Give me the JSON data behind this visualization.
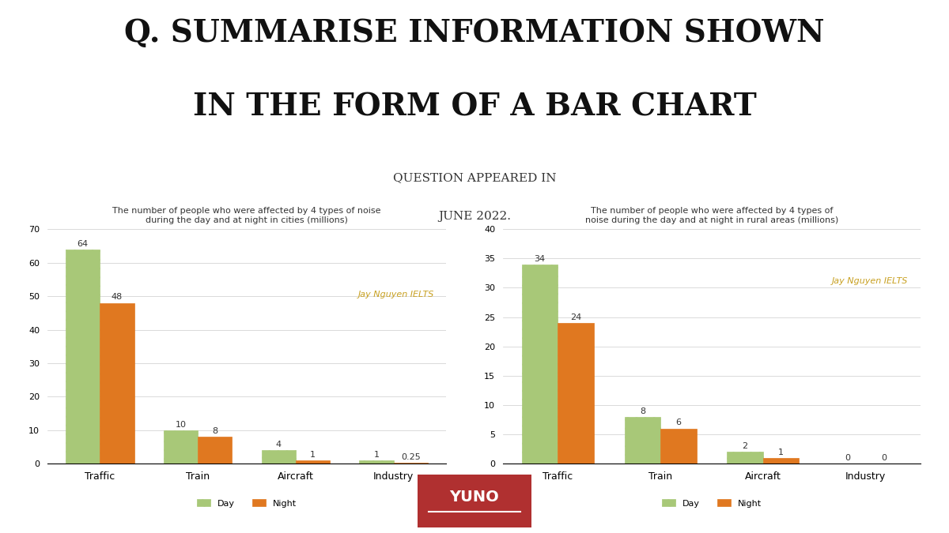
{
  "main_title_line1": "Q. SUMMARISE INFORMATION SHOWN",
  "main_title_line2": "IN THE FORM OF A BAR CHART",
  "subtitle_line1": "QUESTION APPEARED IN",
  "subtitle_line2": "JUNE 2022.",
  "chart1_title": "The number of people who were affected by 4 types of noise\nduring the day and at night in cities (millions)",
  "chart2_title": "The number of people who were affected by 4 types of\nnoise during the day and at night in rural areas (millions)",
  "categories": [
    "Traffic",
    "Train",
    "Aircraft",
    "Industry"
  ],
  "cities_day": [
    64,
    10,
    4,
    1
  ],
  "cities_night": [
    48,
    8,
    1,
    0.25
  ],
  "rural_day": [
    34,
    8,
    2,
    0
  ],
  "rural_night": [
    24,
    6,
    1,
    0
  ],
  "cities_ylim": [
    0,
    70
  ],
  "cities_yticks": [
    0,
    10,
    20,
    30,
    40,
    50,
    60,
    70
  ],
  "rural_ylim": [
    0,
    40
  ],
  "rural_yticks": [
    0,
    5,
    10,
    15,
    20,
    25,
    30,
    35,
    40
  ],
  "day_color": "#a8c878",
  "night_color": "#e07820",
  "watermark_color": "#c8a020",
  "watermark_text": "Jay Nguyen IELTS",
  "background_color": "#ffffff",
  "bar_hatch": "///",
  "logo_bg_color": "#b03030",
  "logo_text": "YUNO",
  "legend_day": "Day",
  "legend_night": "Night"
}
